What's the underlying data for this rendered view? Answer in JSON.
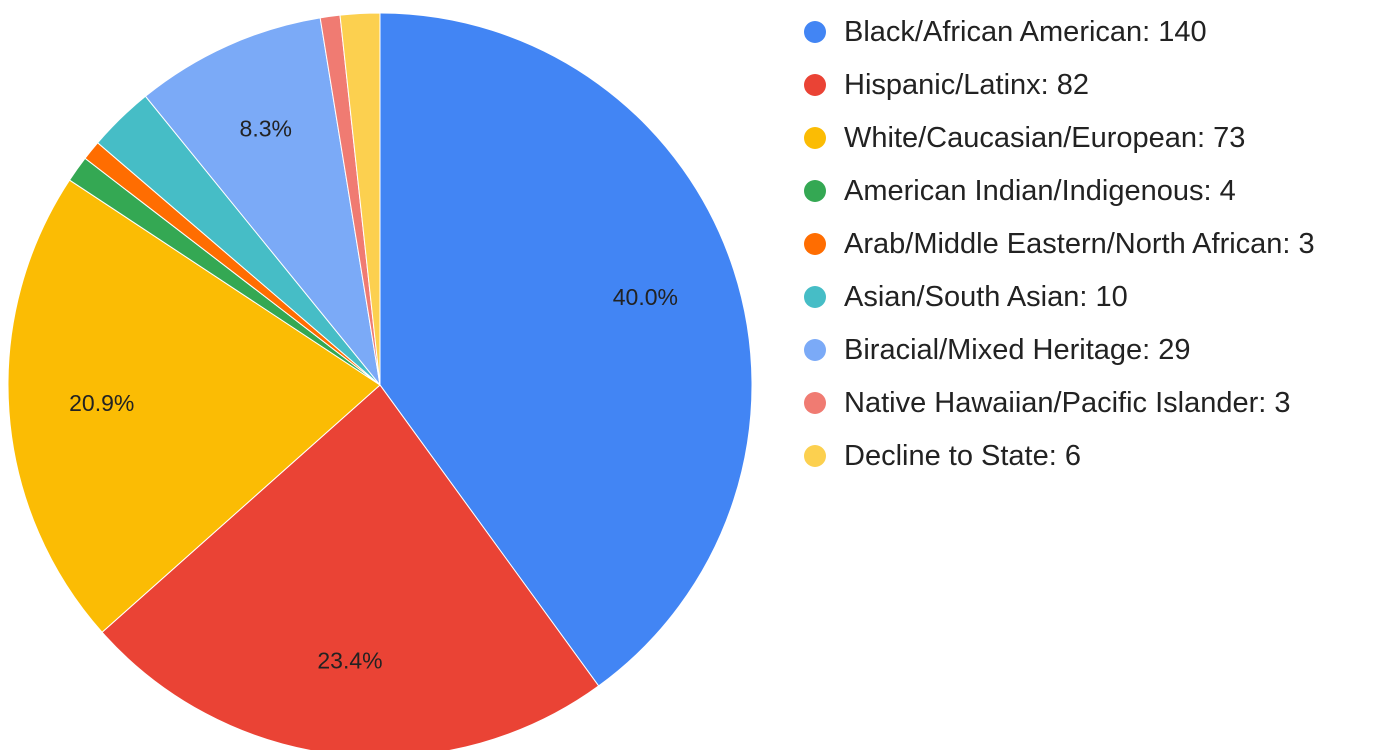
{
  "chart_data": {
    "type": "pie",
    "categories": [
      "Black/African American: 140",
      "Hispanic/Latinx: 82",
      "White/Caucasian/European: 73",
      "American Indian/Indigenous: 4",
      "Arab/Middle Eastern/North African: 3",
      "Asian/South Asian: 10",
      "Biracial/Mixed Heritage: 29",
      "Native Hawaiian/Pacific Islander: 3",
      "Decline to State: 6"
    ],
    "values": [
      140,
      82,
      73,
      4,
      3,
      10,
      29,
      3,
      6
    ],
    "value_labels": [
      "40.0%",
      "23.4%",
      "20.9%",
      null,
      null,
      null,
      "8.3%",
      null,
      null
    ],
    "colors": [
      "#4285f4",
      "#ea4335",
      "#fbbc04",
      "#34a853",
      "#ff6d01",
      "#46bdc6",
      "#7baaf7",
      "#f07b72",
      "#fcd04f"
    ],
    "legend": "right"
  }
}
